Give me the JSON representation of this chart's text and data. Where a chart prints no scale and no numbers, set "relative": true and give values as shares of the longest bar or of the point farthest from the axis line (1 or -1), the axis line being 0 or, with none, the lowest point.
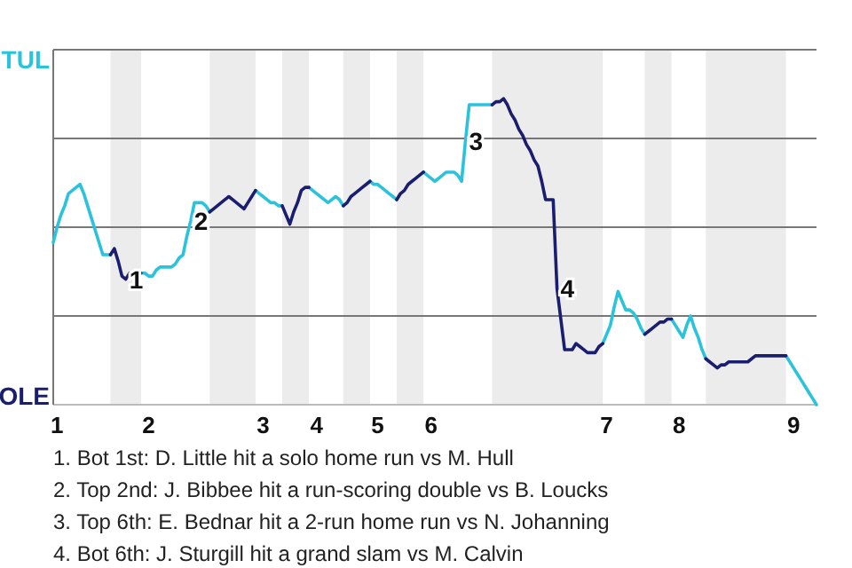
{
  "chart_data": {
    "type": "line",
    "relative": true,
    "categories": [
      null,
      "1",
      null,
      null,
      null,
      null,
      null,
      null,
      null,
      null,
      null,
      null,
      null,
      null,
      null,
      null,
      null,
      null,
      null,
      null,
      null,
      null,
      null,
      null,
      null,
      "2",
      null,
      null,
      null,
      null,
      null,
      null,
      null,
      null,
      null,
      null,
      null,
      null,
      null,
      null,
      null,
      null,
      null,
      null,
      null,
      null,
      null,
      null,
      null,
      null,
      null,
      null,
      null,
      null,
      null,
      "3",
      null,
      null,
      null,
      null,
      null,
      null,
      null,
      null,
      null,
      null,
      null,
      null,
      null,
      "4",
      null,
      null,
      null,
      null,
      null,
      null,
      null,
      null,
      null,
      null,
      null,
      null,
      null,
      null,
      null,
      "5",
      null,
      null,
      null,
      null,
      null,
      null,
      null,
      null,
      null,
      null,
      null,
      null,
      null,
      "6",
      null,
      null,
      null,
      null,
      null,
      null,
      null,
      null,
      null,
      null,
      null,
      null,
      null,
      null,
      null,
      null,
      null,
      null,
      null,
      null,
      null,
      null,
      null,
      null,
      null,
      null,
      null,
      null,
      null,
      null,
      null,
      null,
      null,
      null,
      null,
      null,
      null,
      null,
      null,
      null,
      null,
      null,
      null,
      null,
      null,
      "7",
      null,
      null,
      null,
      null,
      null,
      null,
      null,
      null,
      null,
      null,
      null,
      null,
      null,
      null,
      null,
      null,
      null,
      null,
      "8",
      null,
      null,
      null,
      null,
      null,
      null,
      null,
      null,
      null,
      null,
      null,
      null,
      null,
      null,
      null,
      null,
      null,
      null,
      null,
      null,
      null,
      null,
      null,
      null,
      null,
      null,
      null,
      null,
      null,
      "9",
      null,
      null,
      null,
      null,
      null,
      null
    ],
    "series": [
      {
        "color": "#2bc3dc",
        "values": [
          0.53,
          0.58,
          0.62,
          0.65,
          0.69,
          0.7,
          0.71,
          0.72,
          0.69,
          0.65,
          0.61,
          0.57,
          0.53,
          0.49,
          0.49,
          0.49,
          null,
          null,
          null,
          null,
          null,
          null,
          null,
          0.43,
          0.43,
          0.42,
          0.42,
          0.44,
          0.45,
          0.45,
          0.45,
          0.45,
          0.46,
          0.48,
          0.49,
          0.55,
          0.6,
          0.66,
          0.66,
          0.66,
          0.65,
          0.63,
          null,
          null,
          null,
          null,
          null,
          null,
          null,
          null,
          null,
          null,
          null,
          0.7,
          0.69,
          0.68,
          0.67,
          0.66,
          0.66,
          0.65,
          0.65,
          null,
          null,
          null,
          null,
          null,
          null,
          0.71,
          0.7,
          0.69,
          0.68,
          0.67,
          0.66,
          0.67,
          0.68,
          0.67,
          0.65,
          null,
          null,
          null,
          null,
          null,
          null,
          0.73,
          0.72,
          0.72,
          0.71,
          0.7,
          0.69,
          0.68,
          0.67,
          null,
          null,
          null,
          null,
          null,
          null,
          0.76,
          0.75,
          0.74,
          0.73,
          0.74,
          0.75,
          0.76,
          0.76,
          0.76,
          0.75,
          0.73,
          0.86,
          0.98,
          0.98,
          0.98,
          0.98,
          0.98,
          0.98,
          0.98,
          null,
          null,
          null,
          null,
          null,
          null,
          null,
          null,
          null,
          null,
          null,
          null,
          null,
          null,
          null,
          null,
          null,
          null,
          null,
          null,
          null,
          null,
          null,
          null,
          null,
          null,
          null,
          null,
          0.2,
          0.23,
          0.26,
          0.32,
          0.37,
          0.34,
          0.31,
          0.31,
          0.3,
          0.28,
          0.25,
          0.23,
          null,
          null,
          null,
          null,
          null,
          null,
          0.28,
          0.26,
          0.24,
          0.22,
          0.26,
          0.29,
          0.25,
          0.22,
          0.18,
          0.15,
          null,
          null,
          null,
          null,
          null,
          null,
          null,
          null,
          null,
          null,
          null,
          null,
          null,
          null,
          null,
          null,
          null,
          null,
          null,
          null,
          0.16,
          0.14,
          0.12,
          0.1,
          0.08,
          0.06,
          0.04,
          0.02,
          0
        ],
        "value_labels": [
          null,
          null,
          null,
          null,
          null,
          null,
          null,
          null,
          null,
          null,
          null,
          null,
          null,
          null,
          null,
          null,
          null,
          null,
          null,
          null,
          null,
          null,
          null,
          null,
          null,
          null,
          null,
          null,
          null,
          null,
          null,
          null,
          null,
          null,
          null,
          null,
          null,
          null,
          null,
          null,
          null,
          null,
          null,
          null,
          null,
          null,
          null,
          null,
          null,
          null,
          null,
          null,
          null,
          null,
          null,
          null,
          null,
          null,
          null,
          null,
          null,
          null,
          null,
          null,
          null,
          null,
          null,
          null,
          null,
          null,
          null,
          null,
          null,
          null,
          null,
          null,
          null,
          null,
          null,
          null,
          null,
          null,
          null,
          null,
          null,
          null,
          null,
          null,
          null,
          null,
          null,
          null,
          null,
          null,
          null,
          null,
          null,
          null,
          null,
          null,
          null,
          null,
          null,
          null,
          null,
          null,
          null,
          null,
          null,
          null,
          null,
          null,
          null,
          null,
          null,
          null,
          null,
          null,
          null,
          null,
          null,
          null,
          null,
          null,
          null,
          null,
          null,
          null,
          null,
          null,
          null,
          null,
          null,
          null,
          null,
          null,
          null,
          null,
          null,
          null,
          null,
          null,
          null,
          null,
          null,
          null,
          null,
          null,
          null,
          null,
          null,
          null,
          null,
          null,
          null,
          null,
          null,
          null,
          null,
          null,
          null,
          null,
          null,
          null,
          null,
          null,
          null,
          null,
          null,
          null,
          null,
          null,
          null,
          null,
          null,
          null,
          null,
          null,
          null,
          null,
          null,
          null,
          null,
          null,
          null,
          null,
          null,
          null,
          null,
          null,
          null,
          null,
          null,
          null,
          null,
          null,
          null,
          null,
          null,
          null,
          null
        ]
      },
      {
        "color": "#1b1e6e",
        "values": [
          null,
          null,
          null,
          null,
          null,
          null,
          null,
          null,
          null,
          null,
          null,
          null,
          null,
          null,
          null,
          0.49,
          0.51,
          0.47,
          0.42,
          0.41,
          0.43,
          0.43,
          0.43,
          0.43,
          null,
          null,
          null,
          null,
          null,
          null,
          null,
          null,
          null,
          null,
          null,
          null,
          null,
          null,
          null,
          null,
          null,
          0.63,
          0.64,
          0.65,
          0.66,
          0.67,
          0.68,
          0.67,
          0.66,
          0.65,
          0.64,
          0.66,
          0.68,
          0.7,
          null,
          null,
          null,
          null,
          null,
          null,
          0.65,
          0.62,
          0.59,
          0.63,
          0.66,
          0.7,
          0.71,
          0.71,
          null,
          null,
          null,
          null,
          null,
          null,
          null,
          null,
          0.65,
          0.66,
          0.68,
          0.69,
          0.7,
          0.71,
          0.72,
          0.73,
          null,
          null,
          null,
          null,
          null,
          null,
          0.67,
          0.69,
          0.7,
          0.72,
          0.73,
          0.74,
          0.75,
          0.76,
          null,
          null,
          null,
          null,
          null,
          null,
          null,
          null,
          null,
          null,
          null,
          null,
          null,
          null,
          null,
          null,
          null,
          0.98,
          0.99,
          0.99,
          1,
          0.98,
          0.95,
          0.93,
          0.9,
          0.88,
          0.85,
          0.83,
          0.8,
          0.78,
          0.73,
          0.67,
          0.67,
          0.67,
          0.38,
          0.28,
          0.18,
          0.18,
          0.18,
          0.2,
          0.19,
          0.18,
          0.17,
          0.17,
          0.17,
          0.19,
          0.2,
          null,
          null,
          null,
          null,
          null,
          null,
          null,
          null,
          null,
          null,
          0.23,
          0.24,
          0.25,
          0.26,
          0.27,
          0.27,
          0.28,
          0.28,
          null,
          null,
          null,
          null,
          null,
          null,
          null,
          null,
          0.15,
          0.14,
          0.13,
          0.12,
          0.13,
          0.13,
          0.14,
          0.14,
          0.14,
          0.14,
          0.14,
          0.14,
          0.15,
          0.16,
          0.16,
          0.16,
          0.16,
          0.16,
          0.16,
          0.16,
          0.16,
          0.16,
          null,
          null,
          null,
          null,
          null,
          null,
          null,
          null
        ],
        "value_labels": [
          null,
          null,
          null,
          null,
          null,
          null,
          null,
          null,
          null,
          null,
          null,
          null,
          null,
          null,
          null,
          null,
          null,
          null,
          null,
          null,
          null,
          null,
          null,
          null,
          null,
          null,
          null,
          null,
          null,
          null,
          null,
          null,
          null,
          null,
          null,
          null,
          null,
          null,
          null,
          null,
          null,
          null,
          null,
          null,
          null,
          null,
          null,
          null,
          null,
          null,
          null,
          null,
          null,
          null,
          null,
          null,
          null,
          null,
          null,
          null,
          null,
          null,
          null,
          null,
          null,
          null,
          null,
          null,
          null,
          null,
          null,
          null,
          null,
          null,
          null,
          null,
          null,
          null,
          null,
          null,
          null,
          null,
          null,
          null,
          null,
          null,
          null,
          null,
          null,
          null,
          null,
          null,
          null,
          null,
          null,
          null,
          null,
          null,
          null,
          null,
          null,
          null,
          null,
          null,
          null,
          null,
          null,
          null,
          null,
          null,
          null,
          null,
          null,
          null,
          null,
          null,
          null,
          null,
          null,
          null,
          null,
          null,
          null,
          null,
          null,
          null,
          null,
          null,
          null,
          null,
          null,
          null,
          null,
          null,
          null,
          null,
          null,
          null,
          null,
          null,
          null,
          null,
          null,
          null,
          null,
          null,
          null,
          null,
          null,
          null,
          null,
          null,
          null,
          null,
          null,
          null,
          null,
          null,
          null,
          null,
          null,
          null,
          null,
          null,
          null,
          null,
          null,
          null,
          null,
          null,
          null,
          null,
          null,
          null,
          null,
          null,
          null,
          null,
          null,
          null,
          null,
          null,
          null,
          null,
          null,
          null,
          null,
          null,
          null,
          null,
          null,
          null,
          null,
          null,
          null,
          null,
          null,
          null,
          null,
          null,
          null
        ]
      }
    ],
    "ref_lines": [
      {
        "axis": "y",
        "value": 0.29,
        "color": "#777777"
      },
      {
        "axis": "y",
        "value": 0.58,
        "color": "#777777"
      },
      {
        "axis": "y",
        "value": 0.87,
        "color": "#777777"
      },
      {
        "axis": "y",
        "value": 1.16,
        "color": "#777777"
      }
    ],
    "annotations": [
      "TUL",
      "OLE",
      {
        "text": "1",
        "y": 0.41
      },
      {
        "text": "2",
        "y": 0.6
      },
      {
        "text": "3",
        "y": 0.86
      },
      {
        "text": "4",
        "y": 0.38
      },
      "1. Bot 1st: D. Little hit a solo home run vs M. Hull",
      "2. Top 2nd: J. Bibbee hit a run-scoring double vs B. Loucks",
      "3. Top 6th: E. Bednar hit a 2-run home run vs N. Johanning",
      "4. Bot 6th: J. Sturgill hit a grand slam vs M. Calvin"
    ]
  }
}
